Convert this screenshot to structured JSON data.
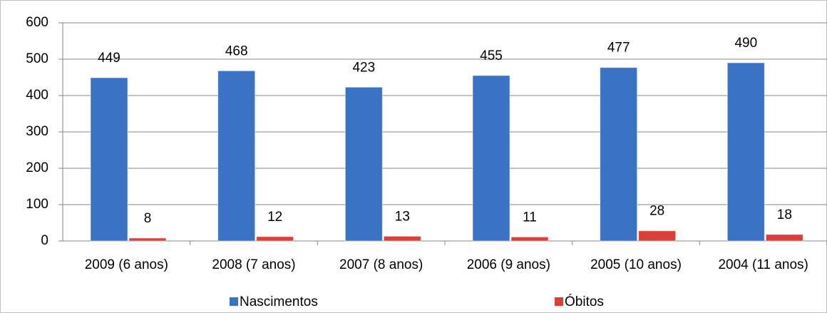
{
  "chart_data": {
    "type": "bar",
    "categories": [
      "2009 (6 anos)",
      "2008 (7 anos)",
      "2007 (8 anos)",
      "2006 (9 anos)",
      "2005 (10 anos)",
      "2004 (11 anos)"
    ],
    "series": [
      {
        "name": "Nascimentos",
        "color": "#3a72c4",
        "values": [
          449,
          468,
          423,
          455,
          477,
          490
        ]
      },
      {
        "name": "Óbitos",
        "color": "#d9403c",
        "values": [
          8,
          12,
          13,
          11,
          28,
          18
        ]
      }
    ],
    "ylim": [
      0,
      600
    ],
    "yticks": [
      0,
      100,
      200,
      300,
      400,
      500,
      600
    ],
    "grid": true,
    "legend": "bottom"
  }
}
